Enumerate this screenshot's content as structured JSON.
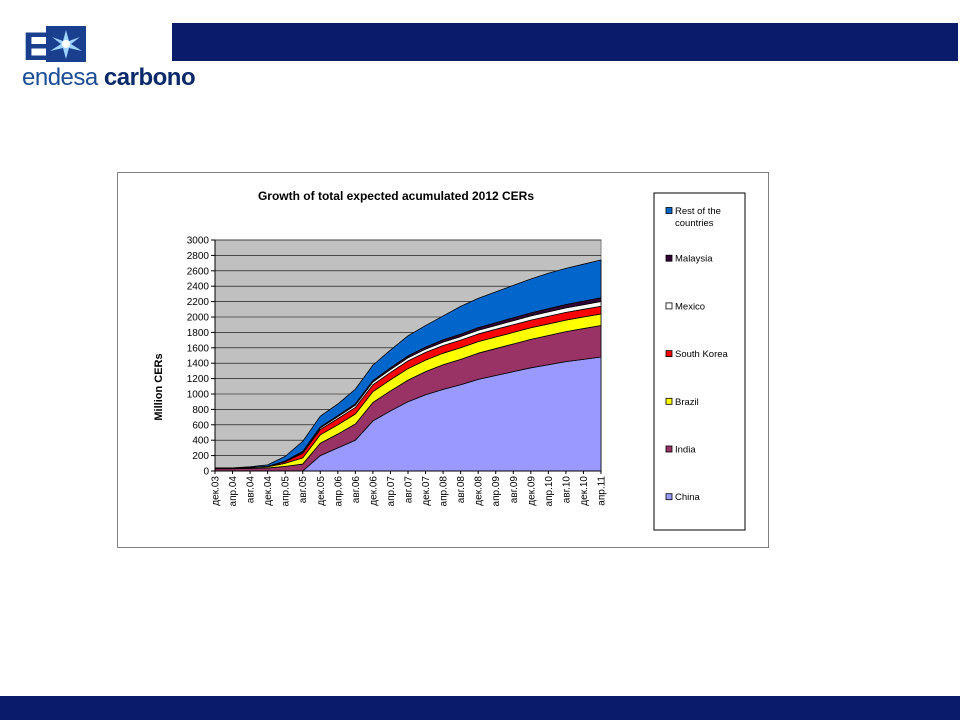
{
  "branding": {
    "logo_word1": "endesa",
    "logo_word2": "carbono",
    "logo_mark_letter": "E",
    "primary_color": "#0b1b6b"
  },
  "chart_data": {
    "type": "area",
    "stacked": true,
    "title": "Growth of total expected acumulated 2012 CERs",
    "xlabel": "",
    "ylabel": "Million CERs",
    "ylim": [
      0,
      3000
    ],
    "yticks": [
      0,
      200,
      400,
      600,
      800,
      1000,
      1200,
      1400,
      1600,
      1800,
      2000,
      2200,
      2400,
      2600,
      2800,
      3000
    ],
    "x_tick_labels": [
      "дек.03",
      "апр.04",
      "авг.04",
      "дек.04",
      "апр.05",
      "авг.05",
      "дек.05",
      "апр.06",
      "авг.06",
      "дек.06",
      "апр.07",
      "авг.07",
      "дек.07",
      "апр.08",
      "авг.08",
      "дек.08",
      "апр.09",
      "авг.09",
      "дек.09",
      "апр.10",
      "авг.10",
      "дек.10",
      "апр.11"
    ],
    "grid": true,
    "plot_background": "#c0c0c0",
    "legend_position": "right",
    "legend_order": [
      "Rest of the countries",
      "Malaysia",
      "Mexico",
      "South Korea",
      "Brazil",
      "India",
      "China"
    ],
    "series": [
      {
        "name": "China",
        "color": "#9999ff",
        "values": [
          0,
          0,
          0,
          0,
          0,
          0,
          200,
          300,
          400,
          650,
          780,
          900,
          990,
          1060,
          1120,
          1190,
          1240,
          1290,
          1340,
          1380,
          1420,
          1450,
          1480
        ]
      },
      {
        "name": "India",
        "color": "#993366",
        "values": [
          30,
          30,
          35,
          40,
          60,
          90,
          160,
          180,
          210,
          240,
          260,
          280,
          300,
          320,
          330,
          340,
          350,
          360,
          370,
          380,
          390,
          400,
          410
        ]
      },
      {
        "name": "Brazil",
        "color": "#ffff00",
        "values": [
          5,
          5,
          10,
          15,
          40,
          80,
          110,
          120,
          130,
          140,
          145,
          150,
          150,
          150,
          150,
          150,
          150,
          150,
          150,
          150,
          150,
          150,
          150
        ]
      },
      {
        "name": "South Korea",
        "color": "#ff0000",
        "values": [
          0,
          0,
          0,
          5,
          20,
          60,
          70,
          80,
          85,
          90,
          95,
          100,
          100,
          100,
          100,
          100,
          100,
          100,
          100,
          100,
          100,
          100,
          100
        ]
      },
      {
        "name": "Mexico",
        "color": "#ffffff",
        "values": [
          0,
          0,
          0,
          0,
          5,
          15,
          20,
          25,
          30,
          35,
          38,
          40,
          42,
          44,
          46,
          48,
          50,
          52,
          54,
          56,
          58,
          60,
          62
        ]
      },
      {
        "name": "Malaysia",
        "color": "#330033",
        "values": [
          0,
          0,
          0,
          0,
          5,
          10,
          12,
          15,
          18,
          20,
          22,
          25,
          27,
          30,
          32,
          34,
          36,
          38,
          40,
          42,
          44,
          46,
          48
        ]
      },
      {
        "name": "Rest of the countries",
        "color": "#0066cc",
        "values": [
          5,
          5,
          10,
          20,
          60,
          130,
          140,
          150,
          190,
          200,
          230,
          260,
          280,
          310,
          360,
          380,
          400,
          420,
          440,
          460,
          470,
          480,
          490
        ]
      }
    ]
  }
}
